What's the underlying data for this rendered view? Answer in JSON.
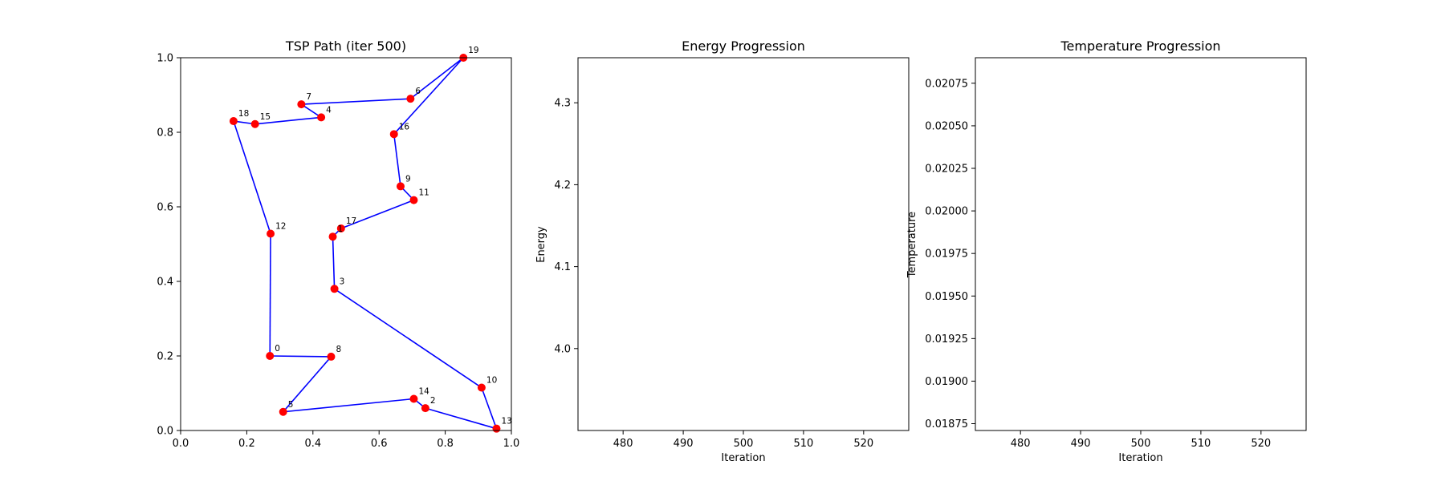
{
  "chart_data": [
    {
      "type": "line",
      "title": "TSP Path (iter 500)",
      "xlim": [
        0,
        1
      ],
      "ylim": [
        0,
        1
      ],
      "x_ticks": [
        "0.0",
        "0.2",
        "0.4",
        "0.6",
        "0.8",
        "1.0"
      ],
      "y_ticks": [
        "0.0",
        "0.2",
        "0.4",
        "0.6",
        "0.8",
        "1.0"
      ],
      "xlabel": "",
      "ylabel": "",
      "grid": false,
      "path_color": "#0000ff",
      "point_color": "#ff0000",
      "points": [
        {
          "label": "0",
          "x": 0.27,
          "y": 0.2
        },
        {
          "label": "1",
          "x": 0.46,
          "y": 0.52
        },
        {
          "label": "2",
          "x": 0.74,
          "y": 0.06
        },
        {
          "label": "3",
          "x": 0.465,
          "y": 0.38
        },
        {
          "label": "4",
          "x": 0.425,
          "y": 0.84
        },
        {
          "label": "5",
          "x": 0.31,
          "y": 0.05
        },
        {
          "label": "6",
          "x": 0.695,
          "y": 0.89
        },
        {
          "label": "7",
          "x": 0.365,
          "y": 0.875
        },
        {
          "label": "8",
          "x": 0.455,
          "y": 0.198
        },
        {
          "label": "9",
          "x": 0.665,
          "y": 0.655
        },
        {
          "label": "10",
          "x": 0.91,
          "y": 0.115
        },
        {
          "label": "11",
          "x": 0.705,
          "y": 0.618
        },
        {
          "label": "12",
          "x": 0.272,
          "y": 0.528
        },
        {
          "label": "13",
          "x": 0.955,
          "y": 0.005
        },
        {
          "label": "14",
          "x": 0.705,
          "y": 0.085
        },
        {
          "label": "15",
          "x": 0.225,
          "y": 0.822
        },
        {
          "label": "16",
          "x": 0.645,
          "y": 0.795
        },
        {
          "label": "17",
          "x": 0.485,
          "y": 0.542
        },
        {
          "label": "18",
          "x": 0.16,
          "y": 0.83
        },
        {
          "label": "19",
          "x": 0.855,
          "y": 1.0
        }
      ],
      "route": [
        "0",
        "8",
        "5",
        "14",
        "2",
        "13",
        "10",
        "3",
        "1",
        "17",
        "11",
        "9",
        "16",
        "19",
        "6",
        "7",
        "4",
        "15",
        "18",
        "12",
        "0"
      ]
    },
    {
      "type": "line",
      "title": "Energy Progression",
      "xlabel": "Iteration",
      "ylabel": "Energy",
      "xlim": [
        472.5,
        527.5
      ],
      "ylim": [
        3.9,
        4.355
      ],
      "x_ticks": [
        "480",
        "490",
        "500",
        "510",
        "520"
      ],
      "y_ticks": [
        "4.0",
        "4.1",
        "4.2",
        "4.3"
      ],
      "grid": false,
      "series": []
    },
    {
      "type": "line",
      "title": "Temperature Progression",
      "xlabel": "Iteration",
      "ylabel": "Temperature",
      "xlim": [
        472.5,
        527.5
      ],
      "ylim": [
        0.01871,
        0.0209
      ],
      "x_ticks": [
        "480",
        "490",
        "500",
        "510",
        "520"
      ],
      "y_ticks": [
        "0.01875",
        "0.01900",
        "0.01925",
        "0.01950",
        "0.01975",
        "0.02000",
        "0.02025",
        "0.02050",
        "0.02075"
      ],
      "grid": false,
      "series": []
    }
  ]
}
